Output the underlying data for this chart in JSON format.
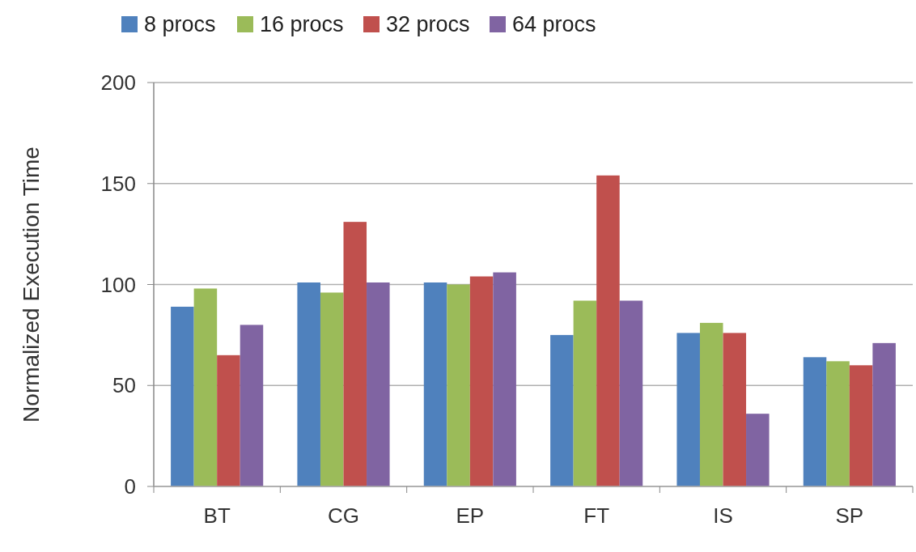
{
  "chart_data": {
    "type": "bar",
    "ylabel": "Normalized Execution Time",
    "categories": [
      "BT",
      "CG",
      "EP",
      "FT",
      "IS",
      "SP"
    ],
    "series": [
      {
        "name": "8 procs",
        "color": "#4f81bd",
        "values": [
          89,
          101,
          101,
          75,
          76,
          64
        ]
      },
      {
        "name": "16 procs",
        "color": "#9bbb59",
        "values": [
          98,
          96,
          100,
          92,
          81,
          62
        ]
      },
      {
        "name": "32 procs",
        "color": "#c0504d",
        "values": [
          65,
          131,
          104,
          154,
          76,
          60
        ]
      },
      {
        "name": "64 procs",
        "color": "#8064a2",
        "values": [
          80,
          101,
          106,
          92,
          36,
          71
        ]
      }
    ],
    "ylim": [
      0,
      200
    ],
    "yticks": [
      0,
      50,
      100,
      150,
      200
    ],
    "grid": "y",
    "legend": "top left"
  }
}
